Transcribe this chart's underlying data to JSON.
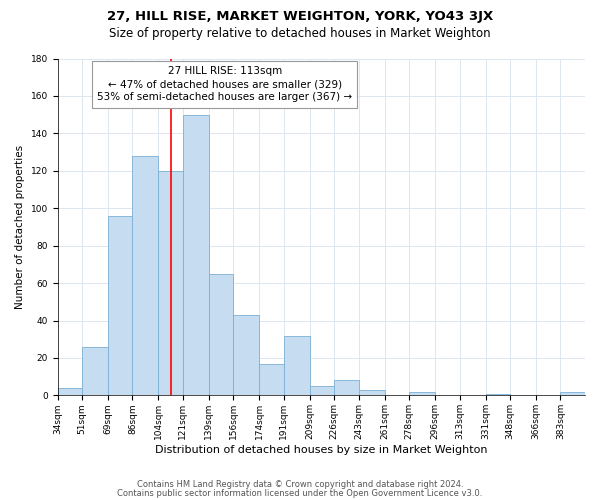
{
  "title": "27, HILL RISE, MARKET WEIGHTON, YORK, YO43 3JX",
  "subtitle": "Size of property relative to detached houses in Market Weighton",
  "xlabel": "Distribution of detached houses by size in Market Weighton",
  "ylabel": "Number of detached properties",
  "bin_labels": [
    "34sqm",
    "51sqm",
    "69sqm",
    "86sqm",
    "104sqm",
    "121sqm",
    "139sqm",
    "156sqm",
    "174sqm",
    "191sqm",
    "209sqm",
    "226sqm",
    "243sqm",
    "261sqm",
    "278sqm",
    "296sqm",
    "313sqm",
    "331sqm",
    "348sqm",
    "366sqm",
    "383sqm"
  ],
  "bin_edges": [
    34,
    51,
    69,
    86,
    104,
    121,
    139,
    156,
    174,
    191,
    209,
    226,
    243,
    261,
    278,
    296,
    313,
    331,
    348,
    366,
    383
  ],
  "bar_heights": [
    4,
    26,
    96,
    128,
    120,
    150,
    65,
    43,
    17,
    32,
    5,
    8,
    3,
    0,
    2,
    0,
    0,
    1,
    0,
    0,
    2
  ],
  "bar_color": "#c6dcf0",
  "bar_edge_color": "#7aafd4",
  "grid_color": "#dde6f0",
  "vline_x": 113,
  "vline_color": "red",
  "annotation_line1": "27 HILL RISE: 113sqm",
  "annotation_line2": "← 47% of detached houses are smaller (329)",
  "annotation_line3": "53% of semi-detached houses are larger (367) →",
  "annotation_box_color": "white",
  "annotation_box_edge": "#999999",
  "ylim": [
    0,
    180
  ],
  "yticks": [
    0,
    20,
    40,
    60,
    80,
    100,
    120,
    140,
    160,
    180
  ],
  "footnote1": "Contains HM Land Registry data © Crown copyright and database right 2024.",
  "footnote2": "Contains public sector information licensed under the Open Government Licence v3.0.",
  "title_fontsize": 9.5,
  "subtitle_fontsize": 8.5,
  "xlabel_fontsize": 8,
  "ylabel_fontsize": 7.5,
  "tick_fontsize": 6.5,
  "footnote_fontsize": 6,
  "annotation_fontsize": 7.5,
  "fig_bg_color": "#ffffff"
}
